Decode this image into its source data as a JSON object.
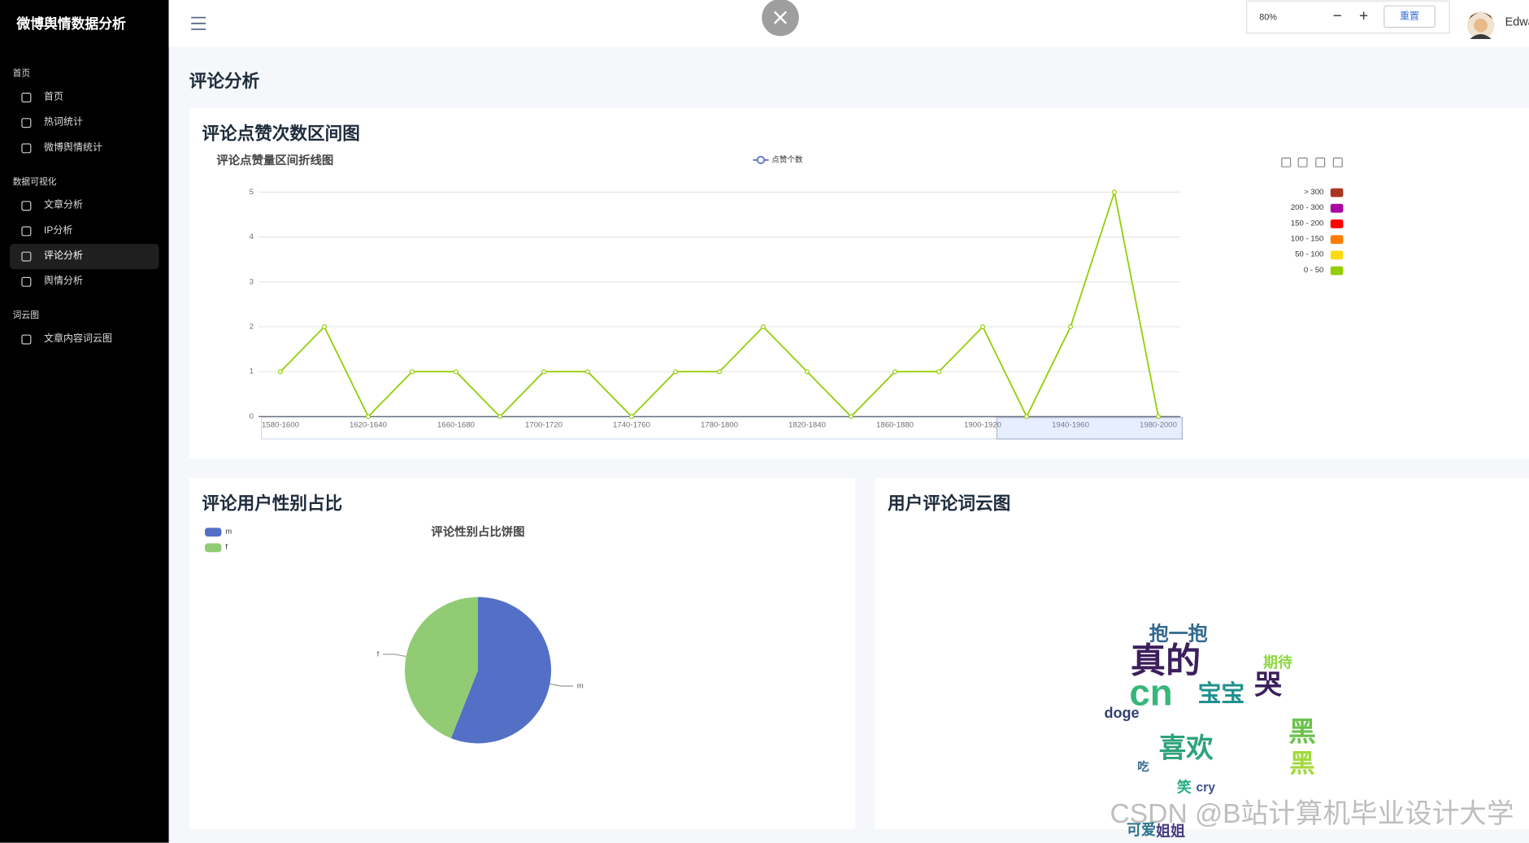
{
  "sidebar": {
    "brand": "微博舆情数据分析",
    "sections": [
      {
        "title": "首页",
        "items": [
          "首页",
          "热词统计",
          "微博舆情统计"
        ]
      },
      {
        "title": "数据可视化",
        "items": [
          "文章分析",
          "IP分析",
          "评论分析",
          "舆情分析"
        ]
      },
      {
        "title": "词云图",
        "items": [
          "文章内容词云图"
        ]
      }
    ],
    "active": [
      1,
      2
    ]
  },
  "header": {
    "zoom": "80%",
    "minus": "−",
    "plus": "+",
    "reset": "重置",
    "user": "Edwa"
  },
  "page_title": "评论分析",
  "cards": [
    "评论点赞次数区间图",
    "评论用户性别占比",
    "用户评论词云图"
  ],
  "chart_data": [
    {
      "type": "line",
      "title": "评论点赞量区间折线图",
      "categories": [
        "1580-1600",
        null,
        "1620-1640",
        null,
        "1660-1680",
        null,
        "1700-1720",
        null,
        "1740-1760",
        null,
        "1780-1800",
        null,
        "1820-1840",
        null,
        "1860-1880",
        null,
        "1900-1920",
        null,
        "1940-1960",
        null,
        "1980-2000"
      ],
      "series": [
        {
          "name": "点赞个数",
          "color": "#93ce07",
          "values": [
            1,
            2,
            0,
            1,
            1,
            0,
            1,
            1,
            0,
            1,
            1,
            2,
            1,
            0,
            1,
            1,
            2,
            0,
            2,
            5,
            0
          ]
        }
      ],
      "ylim": [
        0,
        5
      ],
      "yticks": [
        0,
        1,
        2,
        3,
        4,
        5
      ],
      "grid": true,
      "legend": "top",
      "visual_map": [
        {
          "label": "> 300",
          "color": "#aa3523"
        },
        {
          "label": "200 - 300",
          "color": "#aa069f"
        },
        {
          "label": "150 - 200",
          "color": "#ff0000"
        },
        {
          "label": "100 - 150",
          "color": "#fc7d02"
        },
        {
          "label": "50 - 100",
          "color": "#fbdb0f"
        },
        {
          "label": "0 - 50",
          "color": "#93ce07"
        }
      ]
    },
    {
      "type": "pie",
      "title": "评论性别占比饼图",
      "categories": [
        "m",
        "f"
      ],
      "values": [
        56,
        44
      ],
      "colors": [
        "#5470c6",
        "#91cc75"
      ],
      "legend": "top-left"
    }
  ],
  "word_cloud": {
    "words": [
      "真的",
      "cn",
      "宝宝",
      "喜欢",
      "黑",
      "抱一抱",
      "doge",
      "cry",
      "笑",
      "期待",
      "姐姐",
      "哭",
      "吃",
      "可爱",
      "黑"
    ]
  },
  "watermark": "CSDN @B站计算机毕业设计大学"
}
